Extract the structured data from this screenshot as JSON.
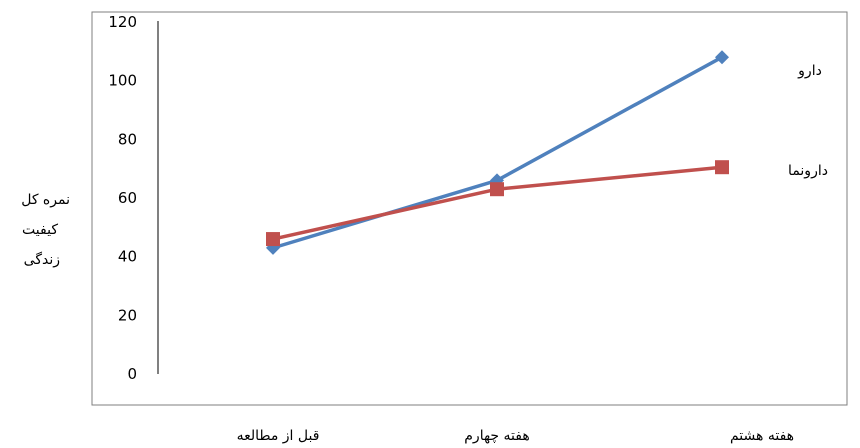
{
  "chart_data": {
    "type": "line",
    "categories": [
      "قبل از مطالعه",
      "هفته چهارم",
      "هفته هشتم"
    ],
    "series": [
      {
        "name": "دارو",
        "values": [
          43,
          66,
          108
        ],
        "color": "#4F81BD",
        "marker": "diamond"
      },
      {
        "name": "دارونما",
        "values": [
          46,
          63,
          70.5
        ],
        "color": "#C0504D",
        "marker": "square"
      }
    ],
    "ylabel": [
      "نمره کل",
      "کیفیت",
      "زندگی"
    ],
    "ylim": [
      0,
      120
    ],
    "yticks": [
      "0",
      "20",
      "40",
      "60",
      "80",
      "100",
      "120"
    ],
    "legend": "inline-right",
    "grid": false
  }
}
